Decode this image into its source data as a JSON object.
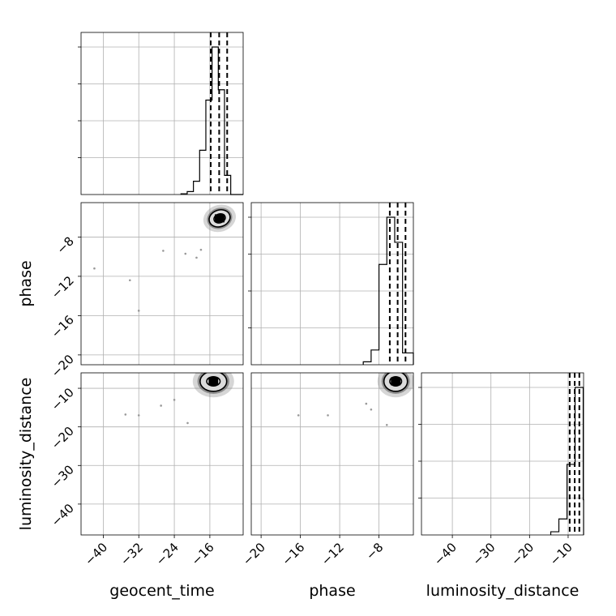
{
  "chart_data": {
    "type": "corner",
    "params": [
      {
        "key": "geocent_time",
        "label": "geocent_time",
        "range": [
          -45,
          -8.5
        ],
        "ticks": [
          -40,
          -32,
          -24,
          -16
        ],
        "tick_labels": [
          "−40",
          "−32",
          "−24",
          "−16"
        ],
        "quantiles": [
          -15.8,
          -13.9,
          -12.1
        ],
        "hist_edges": [
          -22.5,
          -21.1,
          -19.7,
          -18.3,
          -16.9,
          -15.5,
          -14.1,
          -12.7,
          -11.3,
          -9.9,
          -8.5
        ],
        "hist_counts": [
          0.5,
          2,
          9,
          30,
          64,
          100,
          71,
          13,
          0,
          0
        ]
      },
      {
        "key": "phase",
        "label": "phase",
        "range": [
          -21,
          -4.5
        ],
        "ticks": [
          -20,
          -16,
          -12,
          -8
        ],
        "tick_labels": [
          "−20",
          "−16",
          "−12",
          "−8"
        ],
        "quantiles": [
          -6.9,
          -6.1,
          -5.3
        ],
        "hist_edges": [
          -9.6,
          -8.8,
          -8.0,
          -7.2,
          -6.4,
          -5.6,
          -4.8,
          -4.5
        ],
        "hist_counts": [
          2,
          10,
          68,
          100,
          83,
          8,
          8
        ]
      },
      {
        "key": "luminosity_distance",
        "label": "luminosity_distance",
        "range": [
          -48,
          -6
        ],
        "ticks": [
          -40,
          -30,
          -20,
          -10
        ],
        "tick_labels": [
          "−40",
          "−30",
          "−20",
          "−10"
        ],
        "quantiles": [
          -9.6,
          -8.3,
          -7.1
        ],
        "hist_edges": [
          -14.5,
          -12.4,
          -10.3,
          -8.2,
          -6.1,
          -6
        ],
        "hist_counts": [
          2,
          10,
          44,
          92,
          22
        ]
      }
    ],
    "pairs": [
      {
        "x": "geocent_time",
        "y": "phase",
        "contour_center": [
          -13.8,
          -6.1
        ],
        "contour_radii": [
          [
            1.3,
            0.45
          ],
          [
            2.4,
            0.85
          ]
        ],
        "contour_tilt_deg": -18,
        "outliers": [
          [
            -42.0,
            -11.2
          ],
          [
            -34.0,
            -12.4
          ],
          [
            -32.0,
            -15.5
          ],
          [
            -26.5,
            -9.4
          ],
          [
            -21.5,
            -9.7
          ],
          [
            -19.0,
            -10.1
          ],
          [
            -18.0,
            -9.3
          ]
        ]
      },
      {
        "x": "geocent_time",
        "y": "luminosity_distance",
        "contour_center": [
          -15.2,
          -8.2
        ],
        "contour_radii": [
          [
            1.5,
            1.2
          ],
          [
            3.0,
            2.6
          ]
        ],
        "contour_tilt_deg": 0,
        "outliers": [
          [
            -35.0,
            -16.8
          ],
          [
            -32.0,
            -17.0
          ],
          [
            -27.0,
            -14.5
          ],
          [
            -21.0,
            -19.0
          ],
          [
            -24.0,
            -13.0
          ]
        ]
      },
      {
        "x": "phase",
        "y": "luminosity_distance",
        "contour_center": [
          -6.3,
          -8.2
        ],
        "contour_radii": [
          [
            0.6,
            1.2
          ],
          [
            1.2,
            2.6
          ]
        ],
        "contour_tilt_deg": 0,
        "outliers": [
          [
            -16.2,
            -17.0
          ],
          [
            -13.2,
            -17.0
          ],
          [
            -9.3,
            -14.0
          ],
          [
            -8.8,
            -15.5
          ],
          [
            -7.2,
            -19.5
          ]
        ]
      }
    ]
  }
}
